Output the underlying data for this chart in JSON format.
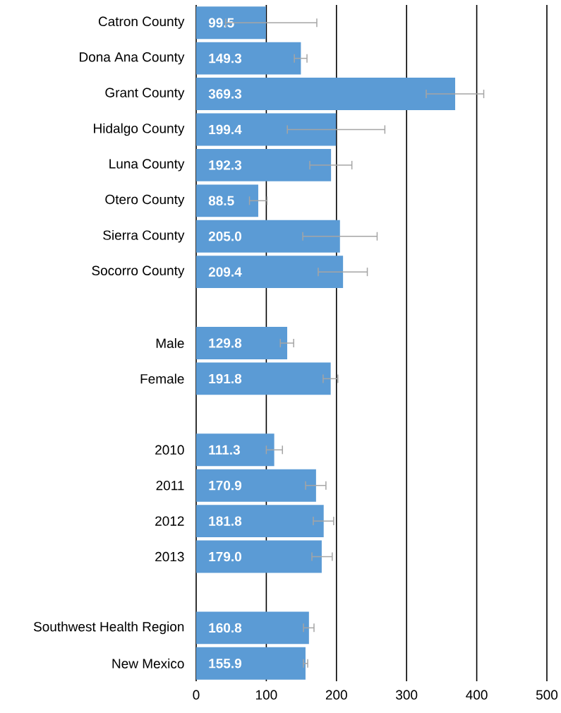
{
  "chart_data": {
    "type": "bar",
    "orientation": "horizontal",
    "categories": [
      "Catron County",
      "Dona Ana County",
      "Grant County",
      "Hidalgo County",
      "Luna County",
      "Otero County",
      "Sierra County",
      "Socorro County",
      null,
      "Male",
      "Female",
      null,
      "2010",
      "2011",
      "2012",
      "2013",
      null,
      "Southwest Health Region",
      "New Mexico"
    ],
    "values": [
      99.5,
      149.3,
      369.3,
      199.4,
      192.3,
      88.5,
      205.0,
      209.4,
      null,
      129.8,
      191.8,
      null,
      111.3,
      170.9,
      181.8,
      179.0,
      null,
      160.8,
      155.9
    ],
    "value_labels": [
      "99.5",
      "149.3",
      "369.3",
      "199.4",
      "192.3",
      "88.5",
      "205.0",
      "209.4",
      null,
      "129.8",
      "191.8",
      null,
      "111.3",
      "170.9",
      "181.8",
      "179.0",
      null,
      "160.8",
      "155.9"
    ],
    "errors": [
      [
        42,
        172
      ],
      [
        140,
        158
      ],
      [
        328,
        410
      ],
      [
        130,
        269
      ],
      [
        162,
        222
      ],
      [
        76,
        101
      ],
      [
        152,
        258
      ],
      [
        174,
        244
      ],
      null,
      [
        120,
        139
      ],
      [
        181,
        202
      ],
      null,
      [
        100,
        123
      ],
      [
        156,
        185
      ],
      [
        167,
        196
      ],
      [
        165,
        194
      ],
      null,
      [
        153,
        168
      ],
      [
        153,
        159
      ]
    ],
    "color": "#5b9bd5",
    "xlim": [
      0,
      500
    ],
    "xticks": [
      0,
      100,
      200,
      300,
      400,
      500
    ],
    "grid": "x"
  }
}
